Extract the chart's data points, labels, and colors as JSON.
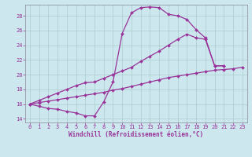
{
  "xlabel": "Windchill (Refroidissement éolien,°C)",
  "bg_color": "#cce8ee",
  "grid_color": "#aacccc",
  "line_color": "#993399",
  "xlim": [
    -0.5,
    23.5
  ],
  "ylim": [
    13.5,
    29.5
  ],
  "yticks": [
    14,
    16,
    18,
    20,
    22,
    24,
    26,
    28
  ],
  "xticks": [
    0,
    1,
    2,
    3,
    4,
    5,
    6,
    7,
    8,
    9,
    10,
    11,
    12,
    13,
    14,
    15,
    16,
    17,
    18,
    19,
    20,
    21,
    22,
    23
  ],
  "line1_x": [
    0,
    1,
    2,
    3,
    4,
    5,
    6,
    7,
    8,
    9,
    10,
    11,
    12,
    13,
    14,
    15,
    16,
    17,
    18,
    19,
    20,
    21
  ],
  "line1_y": [
    16.0,
    15.7,
    15.4,
    15.3,
    15.0,
    14.8,
    14.4,
    14.4,
    16.3,
    19.0,
    25.6,
    28.4,
    29.1,
    29.2,
    29.1,
    28.2,
    28.0,
    27.5,
    26.1,
    25.0,
    21.2,
    21.2
  ],
  "line2_x": [
    0,
    1,
    2,
    3,
    4,
    5,
    6,
    7,
    8,
    9,
    10,
    11,
    12,
    13,
    14,
    15,
    16,
    17,
    18,
    19,
    20,
    21,
    22,
    23
  ],
  "line2_y": [
    16.0,
    16.2,
    16.4,
    16.6,
    16.8,
    17.0,
    17.2,
    17.4,
    17.6,
    17.9,
    18.1,
    18.4,
    18.7,
    19.0,
    19.3,
    19.6,
    19.8,
    20.0,
    20.2,
    20.4,
    20.6,
    20.7,
    20.8,
    21.0
  ],
  "line3_x": [
    0,
    1,
    2,
    3,
    4,
    5,
    6,
    7,
    8,
    9,
    10,
    11,
    12,
    13,
    14,
    15,
    16,
    17,
    18,
    19,
    20,
    21
  ],
  "line3_y": [
    16.0,
    16.5,
    17.0,
    17.5,
    18.0,
    18.5,
    18.9,
    19.0,
    19.5,
    20.0,
    20.5,
    21.0,
    21.8,
    22.5,
    23.2,
    24.0,
    24.8,
    25.5,
    25.0,
    24.8,
    21.2,
    21.2
  ]
}
